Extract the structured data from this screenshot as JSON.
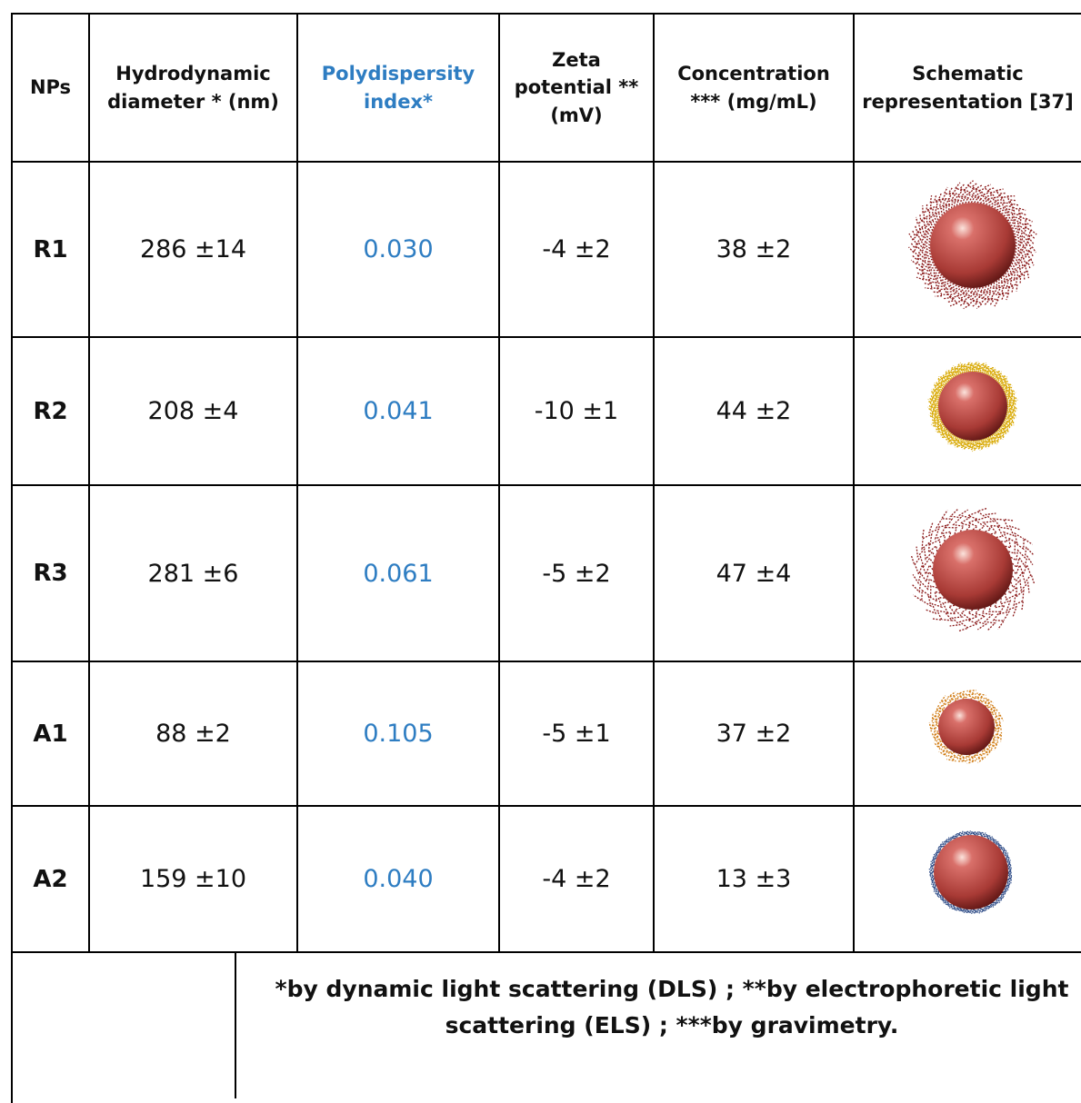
{
  "table": {
    "headers": [
      "NPs",
      "Hydrodynamic diameter * (nm)",
      "Polydispersity index*",
      "Zeta potential ** (mV)",
      "Concentration *** (mg/mL)",
      "Schematic representation [37]"
    ],
    "rows": [
      [
        "R1",
        "286 ±14",
        "0.030",
        "-4 ±2",
        "38 ±2"
      ],
      [
        "R2",
        "208 ±4",
        "0.041",
        "-10 ±1",
        "44 ±2"
      ],
      [
        "R3",
        "281 ±6",
        "0.061",
        "-5 ±2",
        "47 ±4"
      ],
      [
        "A1",
        "88 ±2",
        "0.105",
        "-5 ±1",
        "37 ±2"
      ],
      [
        "A2",
        "159 ±10",
        "0.040",
        "-4 ±2",
        "13 ±3"
      ]
    ],
    "footnote": "*by dynamic light scattering (DLS) ; **by electrophoretic light scattering (ELS) ; ***by gravimetry."
  }
}
